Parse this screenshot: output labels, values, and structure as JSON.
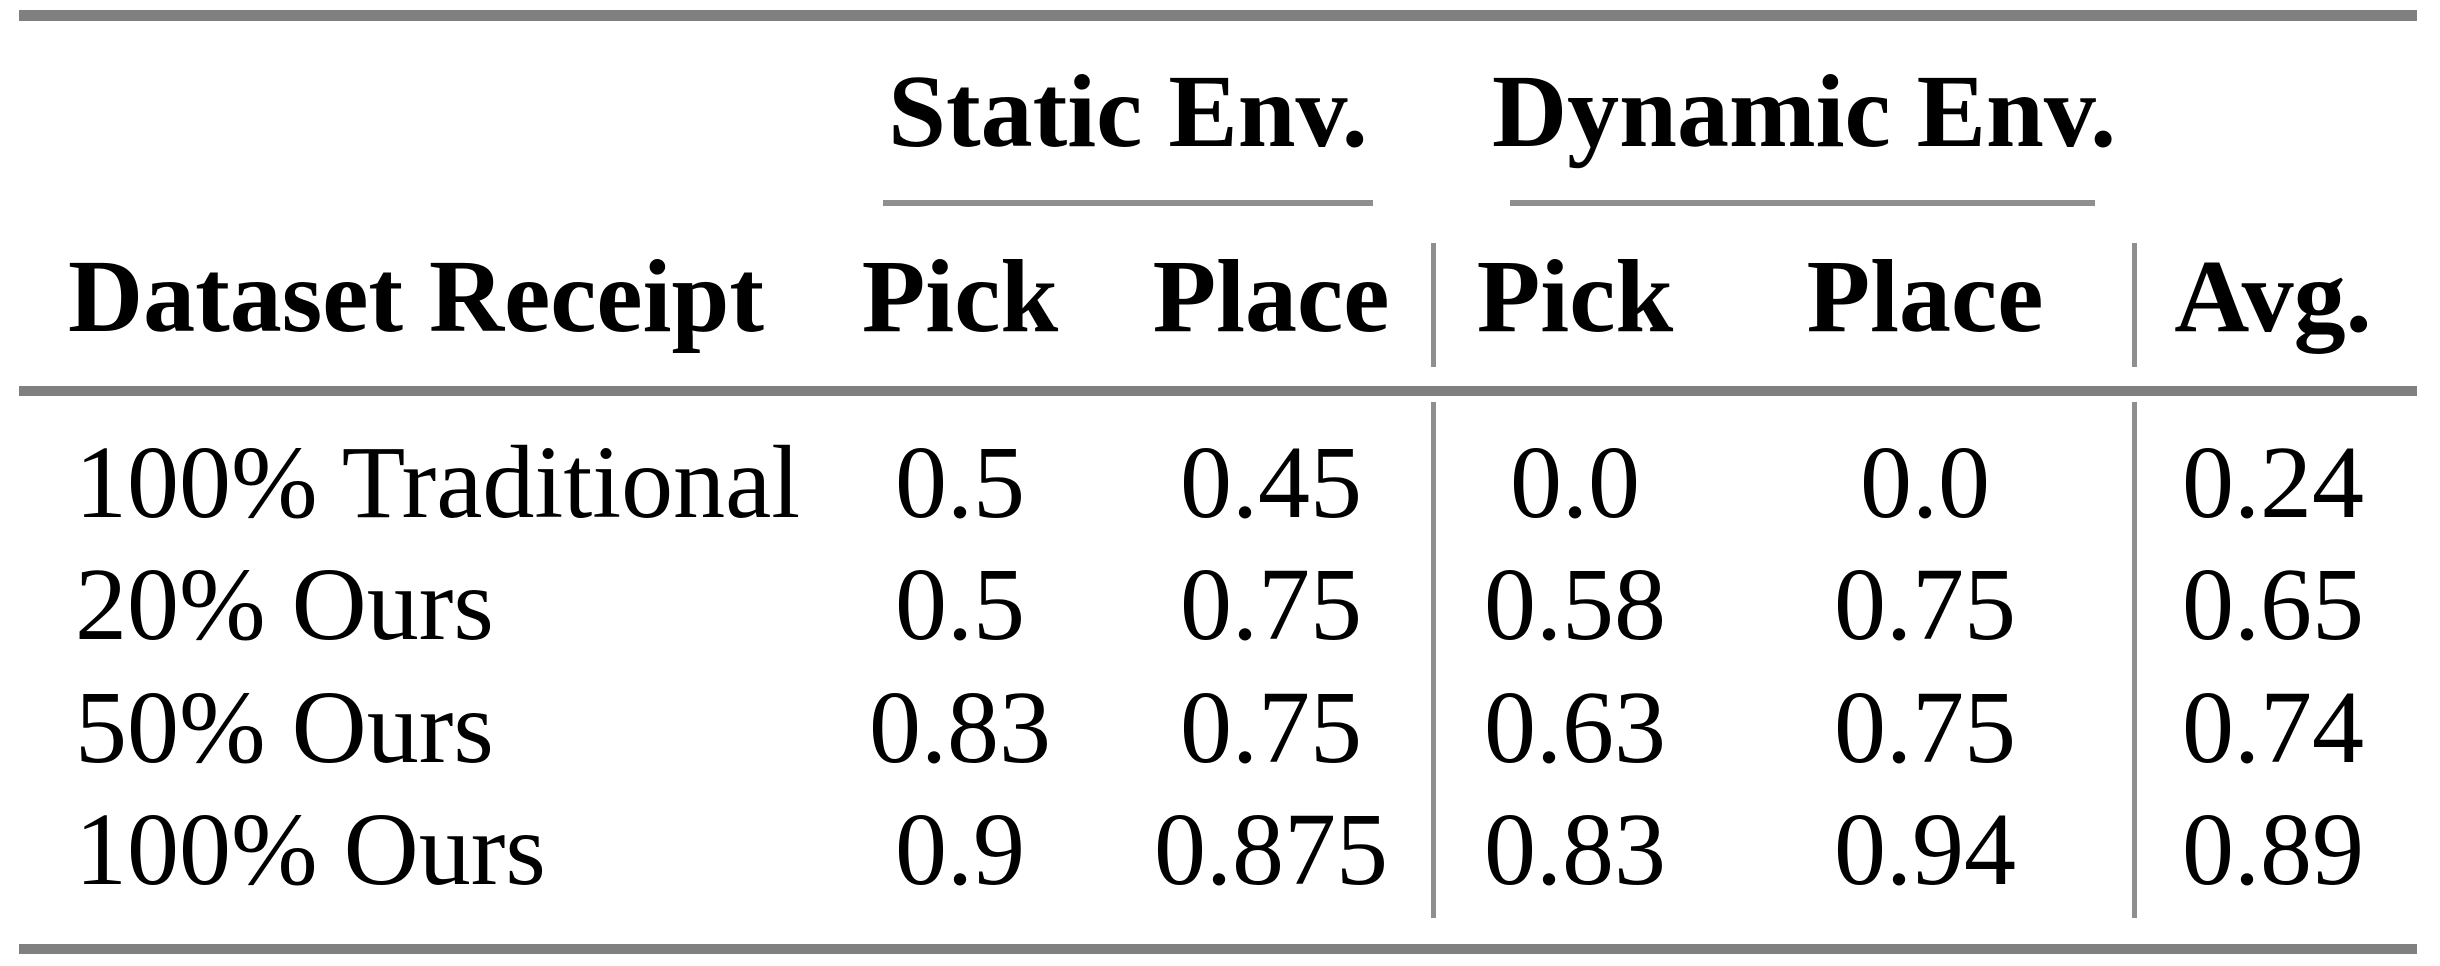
{
  "table": {
    "group_header": {
      "static": "Static Env.",
      "dynamic": "Dynamic Env."
    },
    "col_header": {
      "dataset": "Dataset Receipt",
      "static_pick": "Pick",
      "static_place": "Place",
      "dynamic_pick": "Pick",
      "dynamic_place": "Place",
      "avg": "Avg."
    },
    "rows": [
      {
        "label": "100% Traditional",
        "static_pick": "0.5",
        "static_place": "0.45",
        "dynamic_pick": "0.0",
        "dynamic_place": "0.0",
        "avg": "0.24"
      },
      {
        "label": "20% Ours",
        "static_pick": "0.5",
        "static_place": "0.75",
        "dynamic_pick": "0.58",
        "dynamic_place": "0.75",
        "avg": "0.65"
      },
      {
        "label": "50% Ours",
        "static_pick": "0.83",
        "static_place": "0.75",
        "dynamic_pick": "0.63",
        "dynamic_place": "0.75",
        "avg": "0.74"
      },
      {
        "label": "100% Ours",
        "static_pick": "0.9",
        "static_place": "0.875",
        "dynamic_pick": "0.83",
        "dynamic_place": "0.94",
        "avg": "0.89"
      }
    ]
  },
  "colors": {
    "text": "#000000",
    "rule_thick": "#808080",
    "rule_thin": "#8f8f8f",
    "background": "#ffffff"
  },
  "chart_data": {
    "type": "table",
    "column_groups": [
      {
        "label": "Static Env.",
        "columns": [
          "Pick",
          "Place"
        ]
      },
      {
        "label": "Dynamic Env.",
        "columns": [
          "Pick",
          "Place"
        ]
      }
    ],
    "columns": [
      "Dataset Receipt",
      "Static Env. Pick",
      "Static Env. Place",
      "Dynamic Env. Pick",
      "Dynamic Env. Place",
      "Avg."
    ],
    "rows": [
      [
        "100% Traditional",
        0.5,
        0.45,
        0.0,
        0.0,
        0.24
      ],
      [
        "20% Ours",
        0.5,
        0.75,
        0.58,
        0.75,
        0.65
      ],
      [
        "50% Ours",
        0.83,
        0.75,
        0.63,
        0.75,
        0.74
      ],
      [
        "100% Ours",
        0.9,
        0.875,
        0.83,
        0.94,
        0.89
      ]
    ]
  }
}
